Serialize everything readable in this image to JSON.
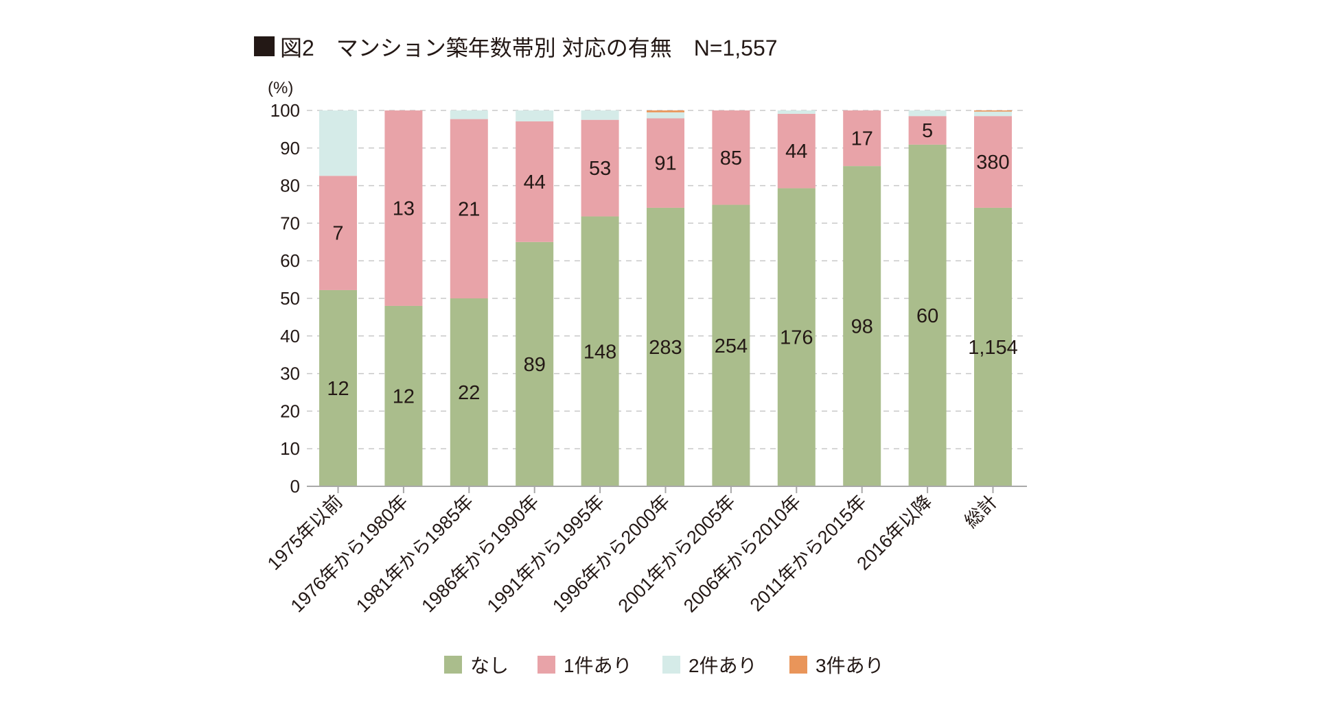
{
  "title": {
    "marker": "■",
    "text": "図2　マンション築年数帯別 対応の有無　N=1,557"
  },
  "colors": {
    "title_marker": "#231815",
    "なし": "#aabd8c",
    "1件あり": "#e8a3a8",
    "2件あり": "#d5ebe8",
    "3件あり": "#e9955a"
  },
  "chart_data": {
    "type": "bar",
    "stacked": true,
    "title": "図2　マンション築年数帯別 対応の有無　N=1,557",
    "xlabel": "",
    "ylabel": "(%)",
    "ylim": [
      0,
      100
    ],
    "yticks": [
      0,
      10,
      20,
      30,
      40,
      50,
      60,
      70,
      80,
      90,
      100
    ],
    "grid": true,
    "legend_position": "bottom",
    "categories": [
      "1975年以前",
      "1976年から1980年",
      "1981年から1985年",
      "1986年から1990年",
      "1991年から1995年",
      "1996年から2000年",
      "2001年から2005年",
      "2006年から2010年",
      "2011年から2015年",
      "2016年以降",
      "総計"
    ],
    "series": [
      {
        "name": "なし",
        "values_percent": [
          52.2,
          48.0,
          50.0,
          65.0,
          71.8,
          74.1,
          74.9,
          79.3,
          85.2,
          90.9,
          74.1
        ],
        "labels": [
          "12",
          "12",
          "22",
          "89",
          "148",
          "283",
          "254",
          "176",
          "98",
          "60",
          "1,154"
        ]
      },
      {
        "name": "1件あり",
        "values_percent": [
          30.4,
          52.0,
          47.7,
          32.1,
          25.7,
          23.8,
          25.1,
          19.8,
          14.8,
          7.6,
          24.4
        ],
        "labels": [
          "7",
          "13",
          "21",
          "44",
          "53",
          "91",
          "85",
          "44",
          "17",
          "5",
          "380"
        ]
      },
      {
        "name": "2件あり",
        "values_percent": [
          17.4,
          0.0,
          2.3,
          2.9,
          2.5,
          1.6,
          0.0,
          0.9,
          0.0,
          1.5,
          1.2
        ],
        "labels": [
          "",
          "",
          "",
          "",
          "",
          "",
          "",
          "",
          "",
          "",
          ""
        ]
      },
      {
        "name": "3件あり",
        "values_percent": [
          0.0,
          0.0,
          0.0,
          0.0,
          0.0,
          0.5,
          0.0,
          0.0,
          0.0,
          0.0,
          0.3
        ],
        "labels": [
          "",
          "",
          "",
          "",
          "",
          "",
          "",
          "",
          "",
          "",
          ""
        ]
      }
    ]
  }
}
